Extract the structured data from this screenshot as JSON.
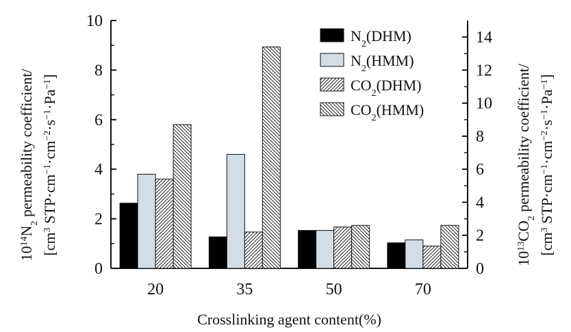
{
  "chart_data": {
    "type": "bar",
    "categories": [
      "20",
      "35",
      "50",
      "70"
    ],
    "xlabel": "Crosslinking agent content(%)",
    "ylabel_left": {
      "line1_prefix": "10",
      "line1_exp": "14",
      "line1_main": "N",
      "line1_sub": "2",
      "line1_rest": " permeability coefficient/",
      "line2_parts": [
        {
          "t": "[cm",
          "s": ""
        },
        {
          "t": "3",
          "s": "sup"
        },
        {
          "t": " STP·cm",
          "s": ""
        },
        {
          "t": "−1",
          "s": "sup"
        },
        {
          "t": "·cm",
          "s": ""
        },
        {
          "t": "−2",
          "s": "sup"
        },
        {
          "t": "·s",
          "s": ""
        },
        {
          "t": "−1",
          "s": "sup"
        },
        {
          "t": "·Pa",
          "s": ""
        },
        {
          "t": "−1",
          "s": "sup"
        },
        {
          "t": "]",
          "s": ""
        }
      ]
    },
    "ylabel_right": {
      "line1_prefix": "10",
      "line1_exp": "13",
      "line1_main": "CO",
      "line1_sub": "2",
      "line1_rest": " permeability coefficient/",
      "line2_parts": [
        {
          "t": "[cm",
          "s": ""
        },
        {
          "t": "3",
          "s": "sup"
        },
        {
          "t": " STP·cm",
          "s": ""
        },
        {
          "t": "−1",
          "s": "sup"
        },
        {
          "t": "·cm",
          "s": ""
        },
        {
          "t": "−2",
          "s": "sup"
        },
        {
          "t": "·s",
          "s": ""
        },
        {
          "t": "−1",
          "s": "sup"
        },
        {
          "t": "·Pa",
          "s": ""
        },
        {
          "t": "−1",
          "s": "sup"
        },
        {
          "t": "]",
          "s": ""
        }
      ]
    },
    "ylim_left": [
      0,
      10
    ],
    "ylim_right": [
      0,
      15
    ],
    "yticks_left": [
      "0",
      "2",
      "4",
      "6",
      "8",
      "10"
    ],
    "yticks_right": [
      "0",
      "2",
      "4",
      "6",
      "8",
      "10",
      "12",
      "14"
    ],
    "legend_position": "top-right",
    "grid": false,
    "series": [
      {
        "name": "N₂(DHM)",
        "legend_main": "N",
        "legend_sub": "2",
        "legend_rest": "(DHM)",
        "axis": "left",
        "style": "solid-black",
        "values": [
          2.63,
          1.27,
          1.53,
          1.03
        ]
      },
      {
        "name": "N₂(HMM)",
        "legend_main": "N",
        "legend_sub": "2",
        "legend_rest": "(HMM)",
        "axis": "left",
        "style": "light-blue",
        "values": [
          3.8,
          4.6,
          1.53,
          1.15
        ]
      },
      {
        "name": "CO₂(DHM)",
        "legend_main": "CO",
        "legend_sub": "2",
        "legend_rest": "(DHM)",
        "axis": "right",
        "style": "hatch-dense-forward",
        "values": [
          5.4,
          2.2,
          2.5,
          1.35
        ]
      },
      {
        "name": "CO₂(HMM)",
        "legend_main": "CO",
        "legend_sub": "2",
        "legend_rest": "(HMM)",
        "axis": "right",
        "style": "hatch-backward",
        "values": [
          8.7,
          13.4,
          2.6,
          2.6
        ]
      }
    ],
    "colors": {
      "solid": "#000000",
      "light": "#d3dde6",
      "hatch": "#333333",
      "axis": "#111111"
    }
  }
}
